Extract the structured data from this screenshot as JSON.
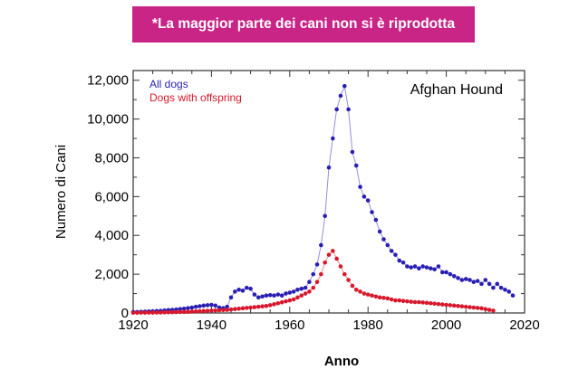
{
  "banner": {
    "text": "*La maggior parte dei cani non si è riprodotta",
    "color": "#c82586"
  },
  "chart_data": {
    "type": "line",
    "title": "",
    "annotation": "Afghan Hound",
    "xlabel": "Anno",
    "ylabel": "Numero di Cani",
    "xlim": [
      1920,
      2020
    ],
    "ylim": [
      0,
      12500
    ],
    "xticks": [
      1920,
      1940,
      1960,
      1980,
      2000,
      2020
    ],
    "xtick_labels": [
      "1920",
      "1940",
      "1960",
      "1980",
      "2000",
      "2020"
    ],
    "yticks": [
      0,
      2000,
      4000,
      6000,
      8000,
      10000,
      12000
    ],
    "ytick_labels": [
      "0",
      "2,000",
      "4,000",
      "6,000",
      "8,000",
      "10,000",
      "12,000"
    ],
    "legend_position": "top-left",
    "grid": false,
    "series": [
      {
        "name": "All dogs",
        "color": "#2a1fb5",
        "x": [
          1920,
          1921,
          1922,
          1923,
          1924,
          1925,
          1926,
          1927,
          1928,
          1929,
          1930,
          1931,
          1932,
          1933,
          1934,
          1935,
          1936,
          1937,
          1938,
          1939,
          1940,
          1941,
          1942,
          1943,
          1944,
          1945,
          1946,
          1947,
          1948,
          1949,
          1950,
          1951,
          1952,
          1953,
          1954,
          1955,
          1956,
          1957,
          1958,
          1959,
          1960,
          1961,
          1962,
          1963,
          1964,
          1965,
          1966,
          1967,
          1968,
          1969,
          1970,
          1971,
          1972,
          1973,
          1974,
          1975,
          1976,
          1977,
          1978,
          1979,
          1980,
          1981,
          1982,
          1983,
          1984,
          1985,
          1986,
          1987,
          1988,
          1989,
          1990,
          1991,
          1992,
          1993,
          1994,
          1995,
          1996,
          1997,
          1998,
          1999,
          2000,
          2001,
          2002,
          2003,
          2004,
          2005,
          2006,
          2007,
          2008,
          2009,
          2010,
          2011,
          2012,
          2013,
          2014,
          2015,
          2016,
          2017
        ],
        "y": [
          50,
          50,
          60,
          70,
          80,
          90,
          100,
          110,
          130,
          150,
          160,
          180,
          200,
          220,
          250,
          280,
          320,
          350,
          380,
          400,
          420,
          380,
          280,
          250,
          320,
          800,
          1100,
          1200,
          1150,
          1300,
          1250,
          950,
          800,
          850,
          900,
          920,
          900,
          950,
          900,
          1000,
          1050,
          1100,
          1200,
          1250,
          1300,
          1600,
          2000,
          2500,
          3500,
          5000,
          7500,
          9000,
          10500,
          11200,
          11700,
          10500,
          8300,
          7600,
          6500,
          6000,
          5800,
          5200,
          4800,
          4200,
          3800,
          3500,
          3200,
          3000,
          2700,
          2600,
          2400,
          2350,
          2400,
          2300,
          2400,
          2350,
          2300,
          2250,
          2400,
          2100,
          2100,
          2000,
          1900,
          1800,
          1700,
          1750,
          1700,
          1600,
          1650,
          1500,
          1700,
          1500,
          1300,
          1500,
          1300,
          1200,
          1100,
          900
        ]
      },
      {
        "name": "Dogs with offspring",
        "color": "#d8182c",
        "x": [
          1920,
          1921,
          1922,
          1923,
          1924,
          1925,
          1926,
          1927,
          1928,
          1929,
          1930,
          1931,
          1932,
          1933,
          1934,
          1935,
          1936,
          1937,
          1938,
          1939,
          1940,
          1941,
          1942,
          1943,
          1944,
          1945,
          1946,
          1947,
          1948,
          1949,
          1950,
          1951,
          1952,
          1953,
          1954,
          1955,
          1956,
          1957,
          1958,
          1959,
          1960,
          1961,
          1962,
          1963,
          1964,
          1965,
          1966,
          1967,
          1968,
          1969,
          1970,
          1971,
          1972,
          1973,
          1974,
          1975,
          1976,
          1977,
          1978,
          1979,
          1980,
          1981,
          1982,
          1983,
          1984,
          1985,
          1986,
          1987,
          1988,
          1989,
          1990,
          1991,
          1992,
          1993,
          1994,
          1995,
          1996,
          1997,
          1998,
          1999,
          2000,
          2001,
          2002,
          2003,
          2004,
          2005,
          2006,
          2007,
          2008,
          2009,
          2010,
          2011,
          2012
        ],
        "y": [
          10,
          10,
          15,
          15,
          20,
          20,
          25,
          25,
          30,
          35,
          40,
          45,
          50,
          55,
          60,
          70,
          80,
          90,
          100,
          110,
          120,
          130,
          140,
          150,
          160,
          180,
          200,
          220,
          240,
          260,
          280,
          300,
          320,
          340,
          360,
          400,
          450,
          500,
          550,
          600,
          650,
          700,
          800,
          900,
          1000,
          1100,
          1300,
          1600,
          2000,
          2600,
          3000,
          3200,
          2800,
          2400,
          2000,
          1700,
          1400,
          1200,
          1100,
          1000,
          950,
          900,
          850,
          800,
          780,
          750,
          700,
          650,
          650,
          620,
          600,
          580,
          560,
          560,
          540,
          520,
          500,
          480,
          460,
          440,
          420,
          400,
          380,
          360,
          340,
          320,
          300,
          280,
          260,
          240,
          200,
          160,
          120
        ]
      }
    ]
  }
}
